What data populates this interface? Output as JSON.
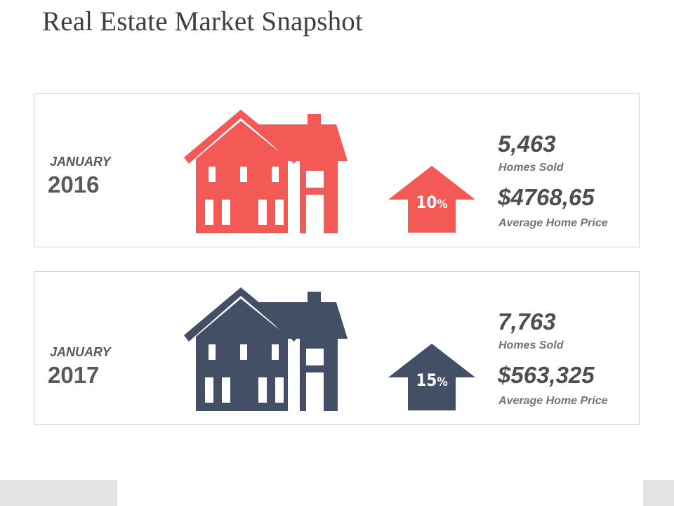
{
  "title": "Real Estate Market Snapshot",
  "colors": {
    "panel1_accent": "#f35a55",
    "panel2_accent": "#424f65"
  },
  "panels": [
    {
      "month": "JANUARY",
      "year": "2016",
      "icon": "house-icon",
      "change_value": "10",
      "change_unit": "%",
      "homes_sold": "5,463",
      "homes_sold_label": "Homes Sold",
      "avg_price": "$4768,65",
      "avg_price_label": "Average Home Price"
    },
    {
      "month": "JANUARY",
      "year": "2017",
      "icon": "house-icon",
      "change_value": "15",
      "change_unit": "%",
      "homes_sold": "7,763",
      "homes_sold_label": "Homes Sold",
      "avg_price": "$563,325",
      "avg_price_label": "Average Home Price"
    }
  ]
}
